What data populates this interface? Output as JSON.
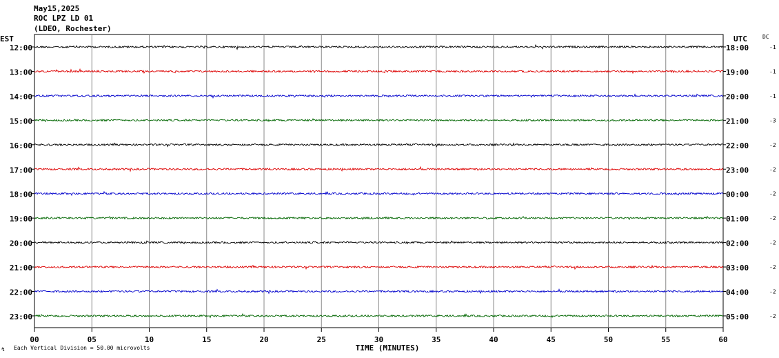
{
  "header": {
    "date": "May15,2025",
    "station": "ROC LPZ LD 01",
    "network": "(LDEO, Rochester)"
  },
  "left_axis_title": "EST",
  "right_axis_title": "UTC",
  "dc_title": "DC",
  "footer_note": "Each Vertical Division =   50.00 microvolts",
  "chart_data": {
    "type": "line",
    "xlabel": "TIME (MINUTES)",
    "xlim": [
      0,
      60
    ],
    "x_ticks": [
      "00",
      "05",
      "10",
      "15",
      "20",
      "25",
      "30",
      "35",
      "40",
      "45",
      "50",
      "55",
      "60"
    ],
    "grid": "vertical lines every 5 minutes",
    "trace_colors": [
      "#000000",
      "#dd0000",
      "#0000cc",
      "#006600"
    ],
    "rows": [
      {
        "est": "12:00",
        "utc": "18:00",
        "dc": "-1"
      },
      {
        "est": "13:00",
        "utc": "19:00",
        "dc": "-1"
      },
      {
        "est": "14:00",
        "utc": "20:00",
        "dc": "-1"
      },
      {
        "est": "15:00",
        "utc": "21:00",
        "dc": "-3"
      },
      {
        "est": "16:00",
        "utc": "22:00",
        "dc": "-2"
      },
      {
        "est": "17:00",
        "utc": "23:00",
        "dc": "-2"
      },
      {
        "est": "18:00",
        "utc": "00:00",
        "dc": "-2"
      },
      {
        "est": "19:00",
        "utc": "01:00",
        "dc": "-2"
      },
      {
        "est": "20:00",
        "utc": "02:00",
        "dc": "-2"
      },
      {
        "est": "21:00",
        "utc": "03:00",
        "dc": "-2"
      },
      {
        "est": "22:00",
        "utc": "04:00",
        "dc": "-2"
      },
      {
        "est": "23:00",
        "utc": "05:00",
        "dc": "-2"
      }
    ]
  }
}
